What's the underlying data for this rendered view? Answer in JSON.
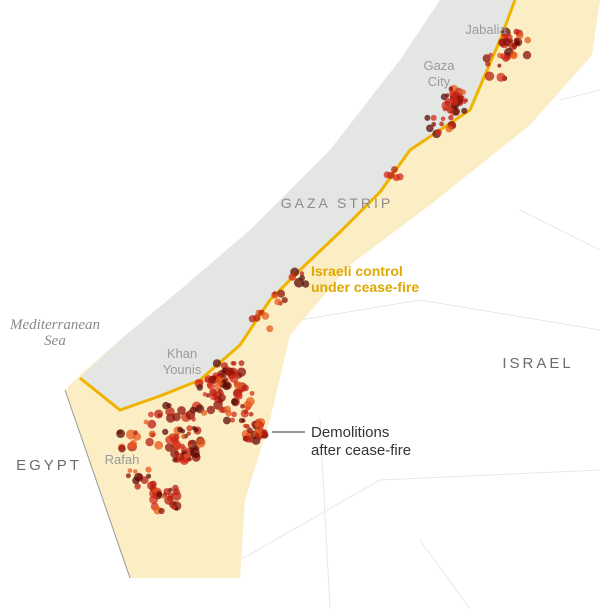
{
  "map": {
    "labels": {
      "jabalia": [
        "Jabalia"
      ],
      "gaza_city": [
        "Gaza",
        "City"
      ],
      "gaza_strip": [
        "GAZA STRIP"
      ],
      "israeli_control": [
        "Israeli control",
        "under cease-fire"
      ],
      "sea": [
        "Mediterranean",
        "Sea"
      ],
      "khan_younis": [
        "Khan",
        "Younis"
      ],
      "israel": [
        "ISRAEL"
      ],
      "egypt": [
        "EGYPT"
      ],
      "rafah": [
        "Rafah"
      ],
      "demolitions": [
        "Demolitions",
        "after cease-fire"
      ]
    }
  }
}
